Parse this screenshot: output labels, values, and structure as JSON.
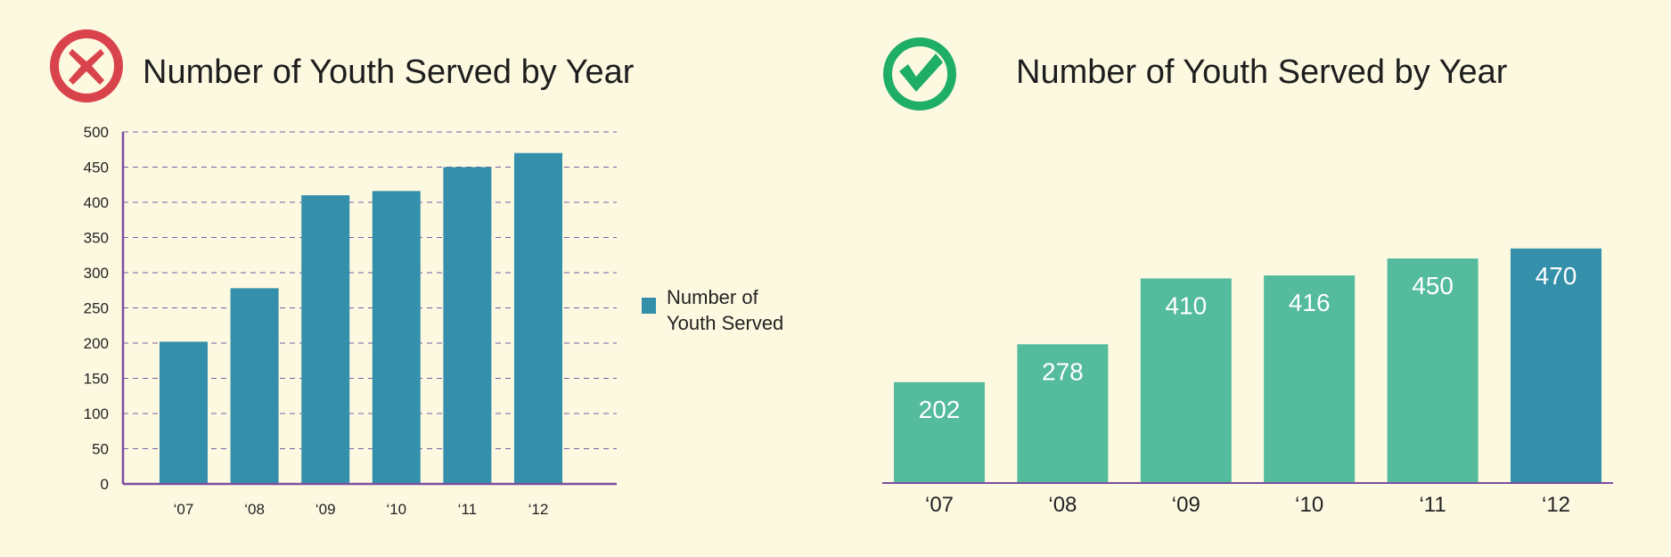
{
  "colors": {
    "background": "#fdf9e1",
    "bad_icon": "#d9434c",
    "good_icon": "#1fae66",
    "bar_blue": "#3490aa",
    "bar_green": "#54bb9c",
    "axis_purple": "#7b4fa0",
    "grid": "#7a5aa3"
  },
  "icons": {
    "bad": "x-mark-icon",
    "good": "check-mark-icon"
  },
  "chart_data": [
    {
      "type": "bar",
      "title": "Number of Youth Served by Year",
      "categories": [
        "‘07",
        "‘08",
        "‘09",
        "‘10",
        "‘11",
        "‘12"
      ],
      "series": [
        {
          "name": "Number of Youth Served",
          "values": [
            202,
            278,
            410,
            416,
            450,
            470
          ]
        }
      ],
      "ylim": [
        0,
        500
      ],
      "yticks": [
        0,
        50,
        100,
        150,
        200,
        250,
        300,
        350,
        400,
        450,
        500
      ],
      "grid": true,
      "legend": {
        "position": "right",
        "lines": [
          "Number of",
          "Youth Served"
        ]
      }
    },
    {
      "type": "bar",
      "title": "Number of Youth Served by Year",
      "categories": [
        "‘07",
        "‘08",
        "‘09",
        "‘10",
        "‘11",
        "‘12"
      ],
      "values": [
        202,
        278,
        410,
        416,
        450,
        470
      ],
      "data_labels": [
        "202",
        "278",
        "410",
        "416",
        "450",
        "470"
      ],
      "highlight_index": 5,
      "grid": false,
      "legend": null
    }
  ]
}
